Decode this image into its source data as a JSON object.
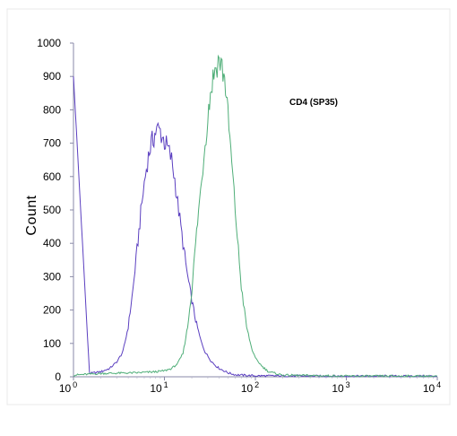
{
  "chart_data": {
    "type": "line",
    "title": "",
    "xlabel": "",
    "ylabel": "Count",
    "annotation": "CD4 (SP35)",
    "x_scale": "log",
    "xlim": [
      1,
      10000
    ],
    "ylim": [
      0,
      1000
    ],
    "y_ticks": [
      "0",
      "100",
      "200",
      "300",
      "400",
      "500",
      "600",
      "700",
      "800",
      "900",
      "1000"
    ],
    "x_ticks": [
      {
        "base": "10",
        "exp": "0"
      },
      {
        "base": "10",
        "exp": "1"
      },
      {
        "base": "10",
        "exp": "2"
      },
      {
        "base": "10",
        "exp": "3"
      },
      {
        "base": "10",
        "exp": "4"
      }
    ],
    "grid": false,
    "legend": "none",
    "series": [
      {
        "color": "#5b3fc0",
        "x": [
          1,
          1.5,
          2,
          2.5,
          3,
          3.5,
          4,
          4.5,
          5,
          5.5,
          6,
          6.5,
          7,
          7.5,
          8,
          8.5,
          9,
          9.5,
          10,
          11,
          12,
          13,
          14,
          16,
          18,
          20,
          22,
          25,
          28,
          32,
          36,
          40,
          50,
          60,
          100,
          1000,
          10000
        ],
        "y": [
          900,
          10,
          15,
          25,
          45,
          75,
          150,
          260,
          380,
          490,
          580,
          645,
          690,
          710,
          735,
          740,
          735,
          720,
          705,
          680,
          650,
          590,
          520,
          400,
          300,
          230,
          170,
          110,
          75,
          50,
          35,
          25,
          12,
          6,
          3,
          2,
          2
        ]
      },
      {
        "color": "#4fae78",
        "x": [
          1,
          2,
          5,
          8,
          10,
          12,
          14,
          16,
          18,
          20,
          22,
          25,
          28,
          30,
          32,
          35,
          38,
          40,
          42,
          45,
          48,
          50,
          55,
          60,
          65,
          70,
          80,
          90,
          100,
          120,
          140,
          200,
          1000,
          10000
        ],
        "y": [
          5,
          10,
          12,
          15,
          18,
          25,
          40,
          70,
          150,
          260,
          400,
          560,
          700,
          780,
          850,
          910,
          940,
          950,
          935,
          905,
          850,
          780,
          640,
          500,
          380,
          270,
          150,
          90,
          55,
          30,
          15,
          5,
          2,
          2
        ]
      }
    ]
  }
}
